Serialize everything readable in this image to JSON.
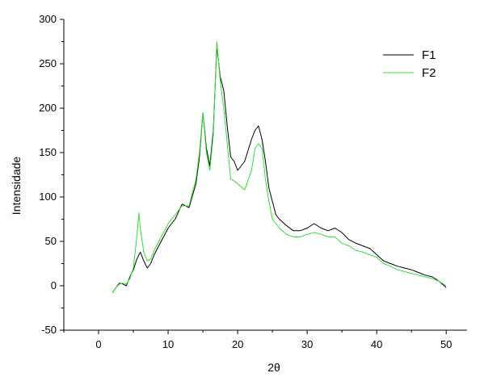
{
  "chart_data": {
    "type": "line",
    "title": "",
    "xlabel": "2θ",
    "ylabel": "Intensidade",
    "xlim": [
      -5,
      53
    ],
    "ylim": [
      -50,
      300
    ],
    "xticks": [
      0,
      10,
      20,
      30,
      40,
      50
    ],
    "yticks": [
      -50,
      0,
      50,
      100,
      150,
      200,
      250,
      300
    ],
    "grid": false,
    "legend_position": "top-right",
    "series": [
      {
        "name": "F1",
        "color": "#000000",
        "x": [
          2,
          2.5,
          3,
          3.5,
          4,
          4.5,
          5,
          5.5,
          6,
          6.5,
          7,
          7.5,
          8,
          9,
          10,
          11,
          12,
          13,
          14,
          14.5,
          15,
          15.5,
          16,
          16.5,
          17,
          17.5,
          18,
          18.5,
          19,
          19.5,
          20,
          21,
          22,
          22.5,
          23,
          23.5,
          24,
          24.5,
          25,
          25.5,
          26,
          27,
          28,
          29,
          30,
          31,
          32,
          33,
          34,
          35,
          36,
          37,
          38,
          39,
          40,
          41,
          42,
          43,
          44,
          45,
          46,
          47,
          48,
          49,
          50
        ],
        "y": [
          -8,
          -2,
          3,
          2,
          0,
          10,
          18,
          30,
          38,
          28,
          20,
          25,
          35,
          50,
          65,
          75,
          92,
          88,
          115,
          145,
          195,
          155,
          135,
          175,
          270,
          235,
          220,
          180,
          145,
          140,
          130,
          140,
          165,
          175,
          180,
          165,
          140,
          110,
          95,
          80,
          75,
          68,
          62,
          62,
          65,
          70,
          65,
          62,
          65,
          60,
          52,
          48,
          45,
          42,
          35,
          28,
          25,
          22,
          20,
          18,
          15,
          12,
          10,
          5,
          -2
        ]
      },
      {
        "name": "F2",
        "color": "#33dd33",
        "x": [
          2,
          2.5,
          3,
          3.5,
          4,
          4.5,
          5,
          5.5,
          5.8,
          6,
          6.5,
          7,
          7.5,
          8,
          9,
          10,
          11,
          12,
          13,
          14,
          14.5,
          15,
          15.5,
          16,
          16.5,
          17,
          17.5,
          18,
          18.5,
          19,
          19.5,
          20,
          21,
          22,
          22.5,
          23,
          23.5,
          24,
          24.5,
          25,
          25.5,
          26,
          27,
          28,
          29,
          30,
          31,
          32,
          33,
          34,
          35,
          36,
          37,
          38,
          39,
          40,
          41,
          42,
          43,
          44,
          45,
          46,
          47,
          48,
          49,
          50
        ],
        "y": [
          -8,
          -2,
          2,
          3,
          2,
          8,
          20,
          55,
          82,
          65,
          38,
          28,
          30,
          40,
          55,
          70,
          80,
          90,
          90,
          120,
          150,
          195,
          150,
          130,
          170,
          275,
          230,
          200,
          160,
          120,
          118,
          115,
          108,
          130,
          155,
          160,
          155,
          120,
          95,
          75,
          70,
          65,
          58,
          55,
          55,
          58,
          60,
          58,
          55,
          55,
          48,
          45,
          40,
          38,
          35,
          32,
          25,
          22,
          18,
          16,
          14,
          12,
          10,
          8,
          5,
          0
        ]
      }
    ]
  }
}
